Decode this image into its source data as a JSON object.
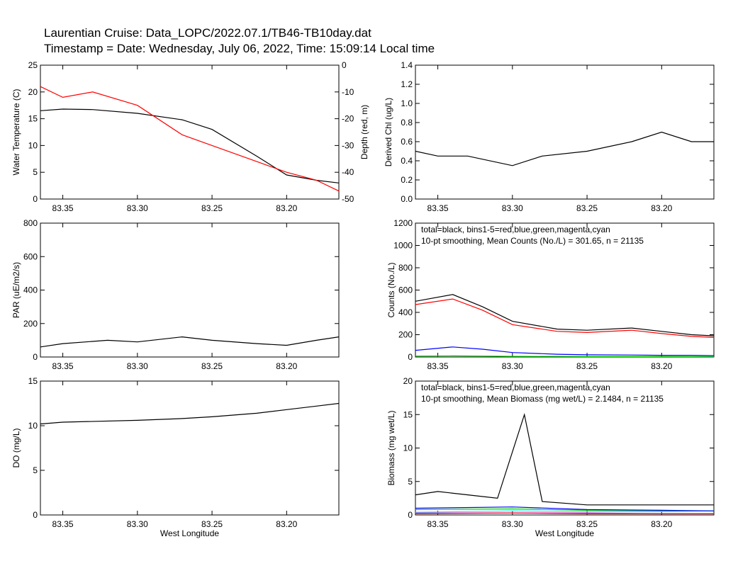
{
  "header": {
    "title_line1": "Laurentian Cruise: Data_LOPC/2022.07.1/TB46-TB10day.dat",
    "title_line2": "Timestamp = Date: Wednesday, July 06, 2022, Time: 15:09:14 Local time"
  },
  "chart_data": [
    {
      "id": "temperature_depth",
      "type": "line",
      "xlabel": "",
      "ylabel": "Water Temperature (C)",
      "y2label": "Depth (red, m)",
      "xlim": [
        83.365,
        83.165
      ],
      "xticks": [
        "83.35",
        "83.30",
        "83.25",
        "83.20"
      ],
      "ylim": [
        0,
        25
      ],
      "yticks": [
        "0",
        "5",
        "10",
        "15",
        "20",
        "25"
      ],
      "y2lim": [
        -50,
        0
      ],
      "y2ticks": [
        "-50",
        "-40",
        "-30",
        "-20",
        "-10",
        "0"
      ],
      "series": [
        {
          "color": "#000000",
          "axis": "left",
          "x": [
            83.365,
            83.35,
            83.33,
            83.3,
            83.27,
            83.25,
            83.22,
            83.2,
            83.18,
            83.165
          ],
          "y": [
            16.5,
            16.8,
            16.7,
            16.0,
            14.8,
            13.0,
            8.0,
            4.5,
            3.5,
            3.0
          ]
        },
        {
          "color": "#ff0000",
          "axis": "right",
          "x": [
            83.365,
            83.35,
            83.33,
            83.3,
            83.27,
            83.25,
            83.22,
            83.2,
            83.18,
            83.165
          ],
          "y": [
            -8,
            -12,
            -10,
            -15,
            -26,
            -30,
            -36,
            -40,
            -43,
            -47
          ]
        }
      ]
    },
    {
      "id": "chlorophyll",
      "type": "line",
      "xlabel": "",
      "ylabel": "Derived Chl (ug/L)",
      "xlim": [
        83.365,
        83.165
      ],
      "xticks": [
        "83.35",
        "83.30",
        "83.25",
        "83.20"
      ],
      "ylim": [
        0,
        1.4
      ],
      "yticks": [
        "0.0",
        "0.2",
        "0.4",
        "0.6",
        "0.8",
        "1.0",
        "1.2",
        "1.4"
      ],
      "series": [
        {
          "color": "#000000",
          "x": [
            83.365,
            83.35,
            83.33,
            83.3,
            83.28,
            83.25,
            83.22,
            83.2,
            83.18,
            83.165
          ],
          "y": [
            0.5,
            0.45,
            0.45,
            0.35,
            0.45,
            0.5,
            0.6,
            0.7,
            0.6,
            0.6
          ]
        }
      ]
    },
    {
      "id": "par",
      "type": "line",
      "xlabel": "",
      "ylabel": "PAR (uE/m2/s)",
      "xlim": [
        83.365,
        83.165
      ],
      "xticks": [
        "83.35",
        "83.30",
        "83.25",
        "83.20"
      ],
      "ylim": [
        0,
        800
      ],
      "yticks": [
        "0",
        "200",
        "400",
        "600",
        "800"
      ],
      "series": [
        {
          "color": "#000000",
          "x": [
            83.365,
            83.35,
            83.32,
            83.3,
            83.27,
            83.25,
            83.22,
            83.2,
            83.18,
            83.165
          ],
          "y": [
            60,
            80,
            100,
            90,
            120,
            100,
            80,
            70,
            100,
            120
          ]
        }
      ]
    },
    {
      "id": "counts",
      "type": "line",
      "xlabel": "",
      "ylabel": "Counts (No./L)",
      "xlim": [
        83.365,
        83.165
      ],
      "xticks": [
        "83.35",
        "83.30",
        "83.25",
        "83.20"
      ],
      "ylim": [
        0,
        1200
      ],
      "yticks": [
        "0",
        "200",
        "400",
        "600",
        "800",
        "1000",
        "1200"
      ],
      "annotations": [
        "total=black, bins1-5=red,blue,green,magenta,cyan",
        "10-pt smoothing,   Mean Counts (No./L) = 301.65, n = 21135"
      ],
      "series": [
        {
          "color": "#000000",
          "x": [
            83.365,
            83.34,
            83.32,
            83.3,
            83.27,
            83.25,
            83.22,
            83.2,
            83.18,
            83.165
          ],
          "y": [
            500,
            560,
            450,
            320,
            250,
            240,
            260,
            230,
            200,
            190
          ]
        },
        {
          "color": "#ff0000",
          "x": [
            83.365,
            83.34,
            83.32,
            83.3,
            83.27,
            83.25,
            83.22,
            83.2,
            83.18,
            83.165
          ],
          "y": [
            470,
            520,
            420,
            290,
            230,
            220,
            240,
            210,
            185,
            175
          ]
        },
        {
          "color": "#0000ff",
          "x": [
            83.365,
            83.34,
            83.32,
            83.3,
            83.27,
            83.25,
            83.22,
            83.2,
            83.18,
            83.165
          ],
          "y": [
            60,
            90,
            70,
            40,
            25,
            20,
            18,
            15,
            15,
            12
          ]
        },
        {
          "color": "#00cc00",
          "x": [
            83.365,
            83.34,
            83.32,
            83.3,
            83.27,
            83.25,
            83.22,
            83.2,
            83.18,
            83.165
          ],
          "y": [
            8,
            10,
            8,
            6,
            5,
            4,
            4,
            4,
            3,
            3
          ]
        }
      ]
    },
    {
      "id": "dissolved_oxygen",
      "type": "line",
      "xlabel": "West Longitude",
      "ylabel": "DO (mg/L)",
      "xlim": [
        83.365,
        83.165
      ],
      "xticks": [
        "83.35",
        "83.30",
        "83.25",
        "83.20"
      ],
      "ylim": [
        0,
        15
      ],
      "yticks": [
        "0",
        "5",
        "10",
        "15"
      ],
      "series": [
        {
          "color": "#000000",
          "x": [
            83.365,
            83.35,
            83.3,
            83.27,
            83.25,
            83.22,
            83.2,
            83.18,
            83.165
          ],
          "y": [
            10.2,
            10.4,
            10.6,
            10.8,
            11.0,
            11.4,
            11.8,
            12.2,
            12.5
          ]
        }
      ]
    },
    {
      "id": "biomass",
      "type": "line",
      "xlabel": "West Longitude",
      "ylabel": "Biomass (mg wet/L)",
      "xlim": [
        83.365,
        83.165
      ],
      "xticks": [
        "83.35",
        "83.30",
        "83.25",
        "83.20"
      ],
      "ylim": [
        0,
        20
      ],
      "yticks": [
        "0",
        "5",
        "10",
        "15",
        "20"
      ],
      "annotations": [
        "total=black, bins1-5=red,blue,green,magenta,cyan",
        "10-pt smoothing,   Mean Biomass (mg wet/L) = 2.1484, n = 21135"
      ],
      "series": [
        {
          "color": "#000000",
          "x": [
            83.365,
            83.35,
            83.33,
            83.31,
            83.292,
            83.28,
            83.25,
            83.22,
            83.2,
            83.18,
            83.165
          ],
          "y": [
            3,
            3.5,
            3,
            2.5,
            15,
            2,
            1.5,
            1.5,
            1.5,
            1.5,
            1.5
          ]
        },
        {
          "color": "#00ffff",
          "x": [
            83.365,
            83.3,
            83.25,
            83.2,
            83.165
          ],
          "y": [
            0.4,
            0.6,
            0.5,
            0.5,
            0.6
          ]
        },
        {
          "color": "#00cc00",
          "x": [
            83.365,
            83.3,
            83.25,
            83.2,
            83.165
          ],
          "y": [
            0.8,
            0.9,
            0.7,
            0.6,
            0.6
          ]
        },
        {
          "color": "#0000ff",
          "x": [
            83.365,
            83.3,
            83.25,
            83.2,
            83.165
          ],
          "y": [
            1.0,
            1.2,
            0.8,
            0.7,
            0.6
          ]
        },
        {
          "color": "#ff00ff",
          "x": [
            83.365,
            83.3,
            83.25,
            83.2,
            83.165
          ],
          "y": [
            0.3,
            0.3,
            0.3,
            0.2,
            0.2
          ]
        },
        {
          "color": "#ff0000",
          "x": [
            83.365,
            83.3,
            83.25,
            83.2,
            83.165
          ],
          "y": [
            0.2,
            0.3,
            0.2,
            0.2,
            0.2
          ]
        }
      ]
    }
  ]
}
